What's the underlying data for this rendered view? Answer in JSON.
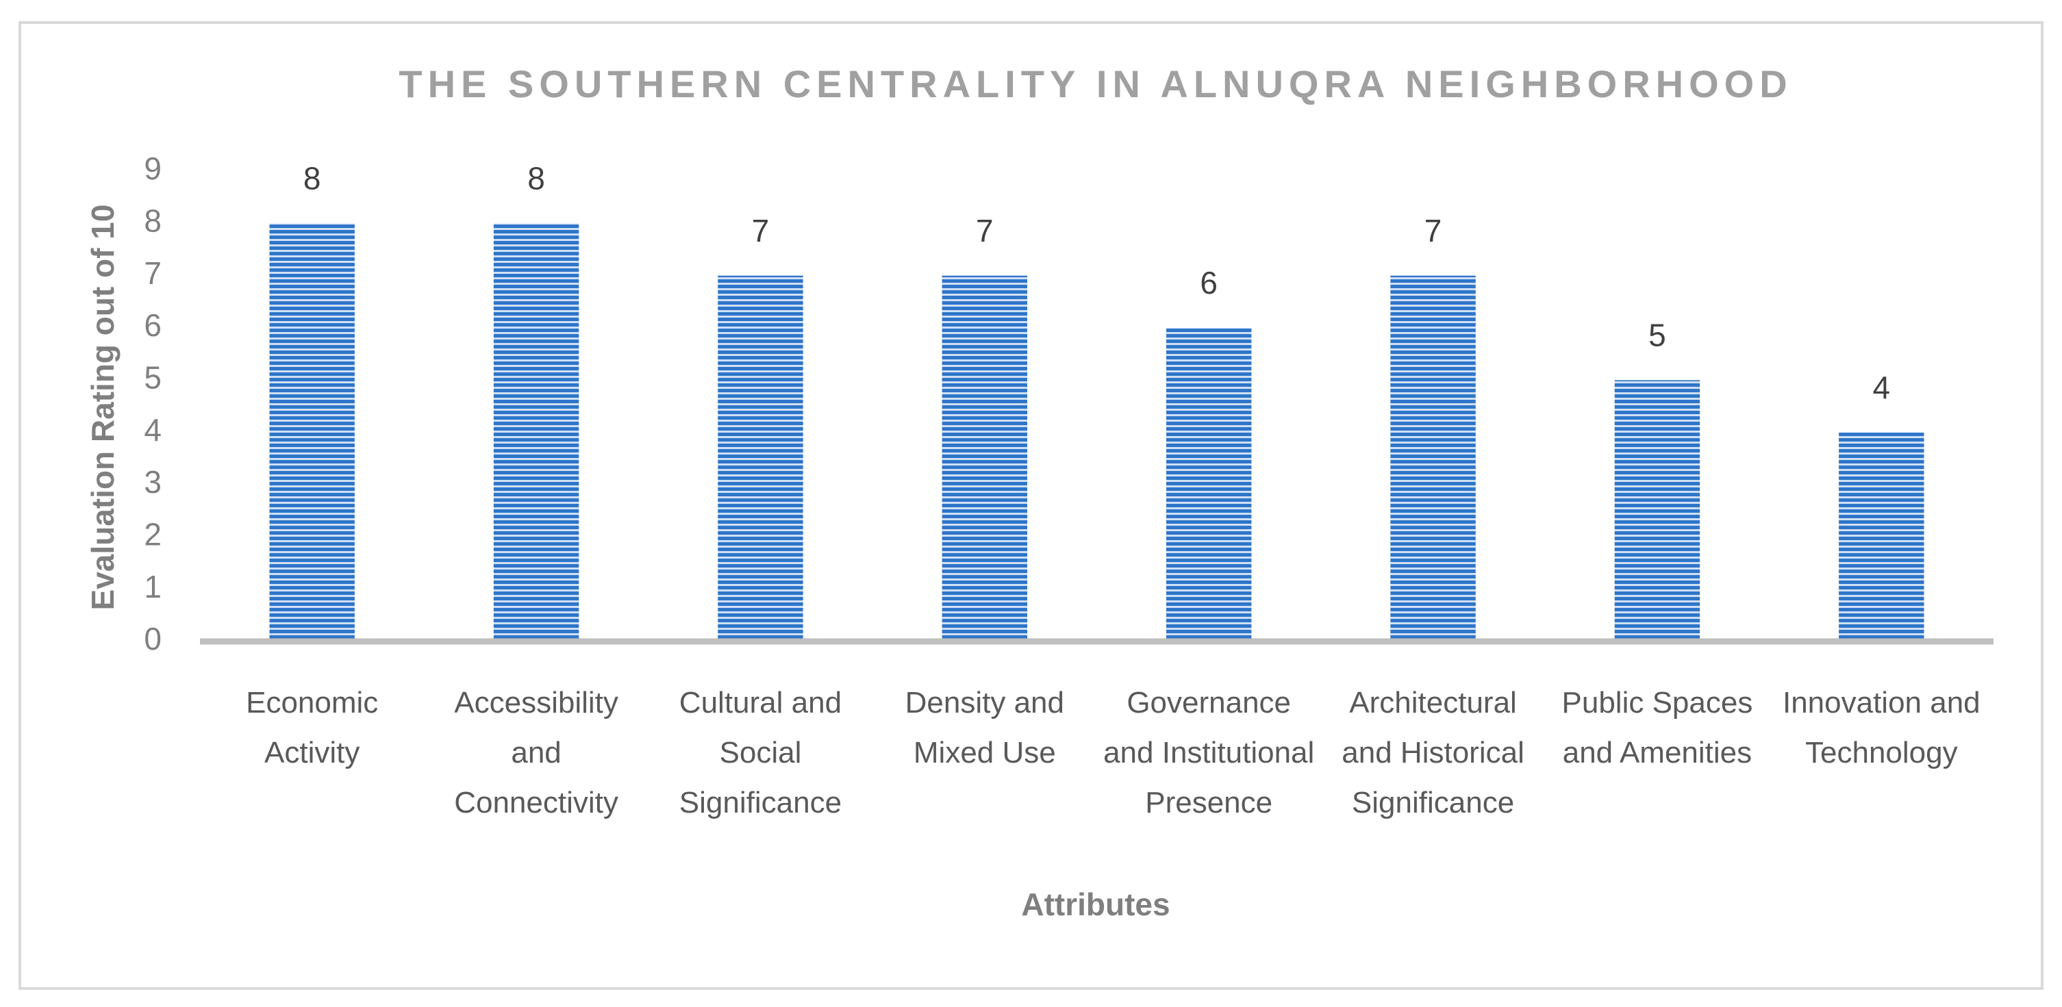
{
  "chart_data": {
    "type": "bar",
    "title": "THE SOUTHERN CENTRALITY IN ALNUQRA NEIGHBORHOOD",
    "x_label": "Attributes",
    "y_label": "Evaluation Rating out of 10",
    "categories": [
      "Economic Activity",
      "Accessibility and Connectivity",
      "Cultural and Social Significance",
      "Density and Mixed Use",
      "Governance and Institutional Presence",
      "Architectural and Historical Significance",
      "Public Spaces and Amenities",
      "Innovation and Technology"
    ],
    "values": [
      8,
      8,
      7,
      7,
      6,
      7,
      5,
      4
    ],
    "color": "#2e75c9",
    "ylim": [
      0,
      9
    ],
    "yticks": [
      0,
      1,
      2,
      3,
      4,
      5,
      6,
      7,
      8,
      9
    ],
    "grid": false
  }
}
